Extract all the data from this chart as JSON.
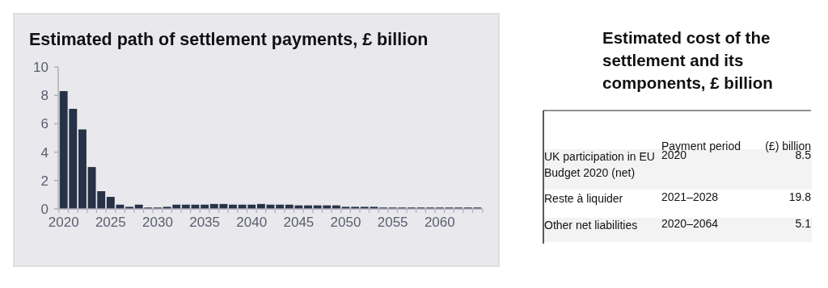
{
  "chart_data": [
    {
      "type": "bar",
      "title": "Estimated path of settlement payments, £ billion",
      "categories": [
        "2020",
        null,
        null,
        null,
        null,
        "2025",
        null,
        null,
        null,
        null,
        "2030",
        null,
        null,
        null,
        null,
        "2035",
        null,
        null,
        null,
        null,
        "2040",
        null,
        null,
        null,
        null,
        "2045",
        null,
        null,
        null,
        null,
        "2050",
        null,
        null,
        null,
        null,
        "2055",
        null,
        null,
        null,
        null,
        "2060",
        null,
        null,
        null,
        null
      ],
      "values": [
        8.3,
        7.05,
        5.6,
        2.95,
        1.25,
        0.85,
        0.3,
        0.15,
        0.3,
        0.1,
        0.1,
        0.15,
        0.3,
        0.3,
        0.3,
        0.3,
        0.35,
        0.35,
        0.3,
        0.3,
        0.3,
        0.35,
        0.3,
        0.3,
        0.3,
        0.25,
        0.25,
        0.25,
        0.25,
        0.25,
        0.15,
        0.15,
        0.15,
        0.15,
        0.1,
        0.1,
        0.1,
        0.1,
        0.1,
        0.1,
        0.1,
        0.1,
        0.1,
        0.1,
        0.1
      ],
      "color": "#263248",
      "ylim": [
        0,
        10
      ],
      "yticks": [
        0,
        2,
        4,
        6,
        8,
        10
      ],
      "grid": false
    },
    {
      "type": "other",
      "title": "Estimated cost of the settlement and its components, £ billion",
      "categories": [
        "UK participation in EU Budget 2020 (net)",
        "Reste à liquider",
        "Other net liabilities"
      ],
      "values": [
        8.5,
        19.8,
        5.1
      ],
      "data_labels": true,
      "annotations": [
        "Payment period",
        "(£) billion",
        "2020",
        "2021–2028",
        "2020–2064"
      ]
    }
  ]
}
